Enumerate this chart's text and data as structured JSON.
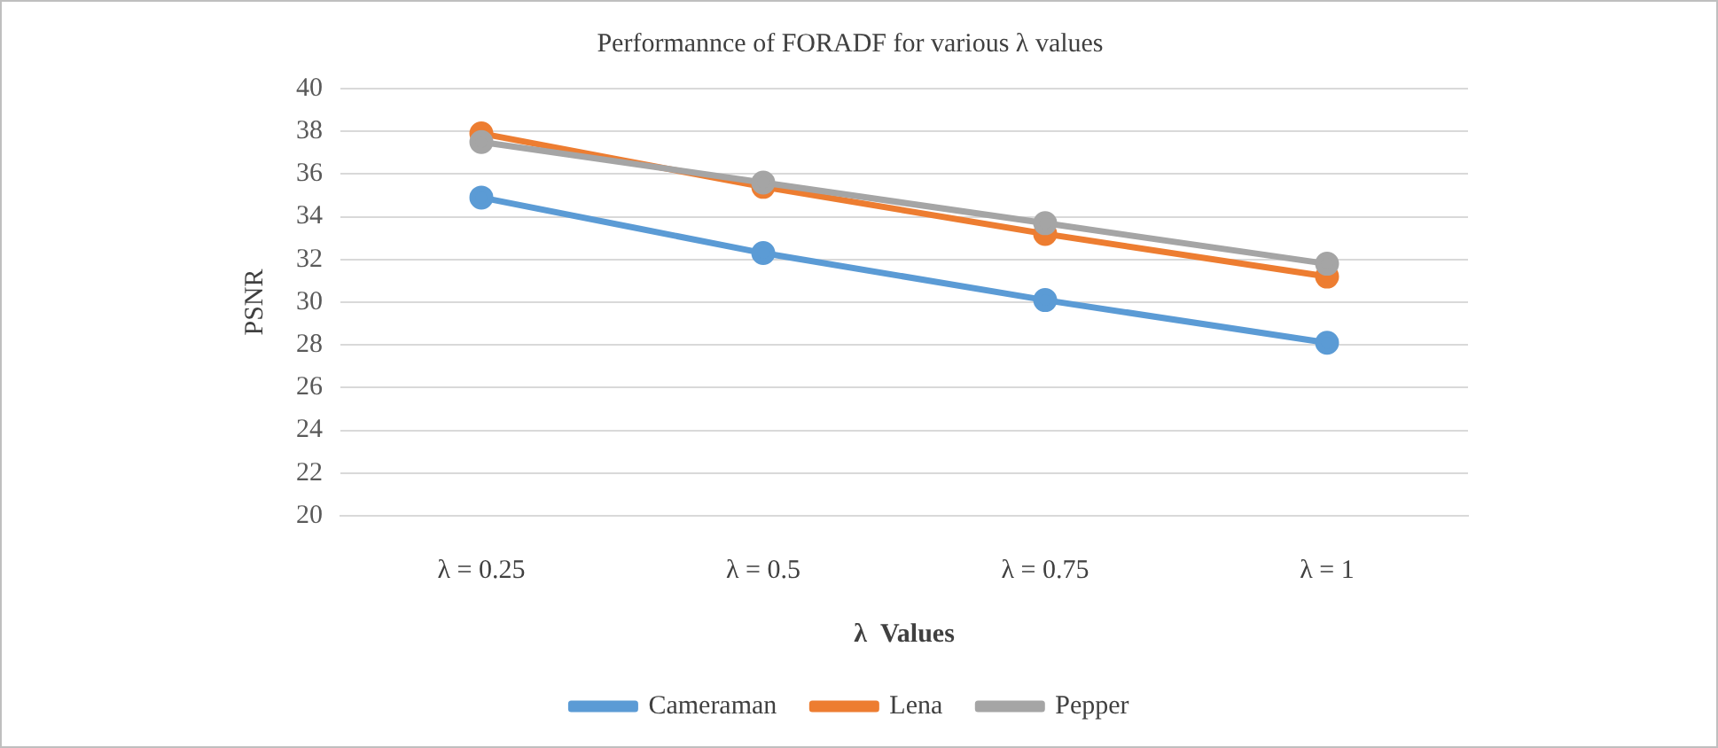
{
  "chart_data": {
    "type": "line",
    "title": "Performannce of FORADF for various λ values",
    "xlabel": "λ  Values",
    "ylabel": "PSNR",
    "categories": [
      "λ = 0.25",
      "λ = 0.5",
      "λ = 0.75",
      "λ = 1"
    ],
    "series": [
      {
        "name": "Cameraman",
        "color": "#5b9bd5",
        "values": [
          34.9,
          32.3,
          30.1,
          28.1
        ]
      },
      {
        "name": "Lena",
        "color": "#ed7d31",
        "values": [
          37.9,
          35.4,
          33.2,
          31.2
        ]
      },
      {
        "name": "Pepper",
        "color": "#a5a5a5",
        "values": [
          37.5,
          35.6,
          33.7,
          31.8
        ]
      }
    ],
    "ylim": [
      20,
      40
    ],
    "yticks": [
      20,
      22,
      24,
      26,
      28,
      30,
      32,
      34,
      36,
      38,
      40
    ],
    "grid": "y",
    "legend": "bottom",
    "marker": "circle",
    "line_style": "solid"
  }
}
